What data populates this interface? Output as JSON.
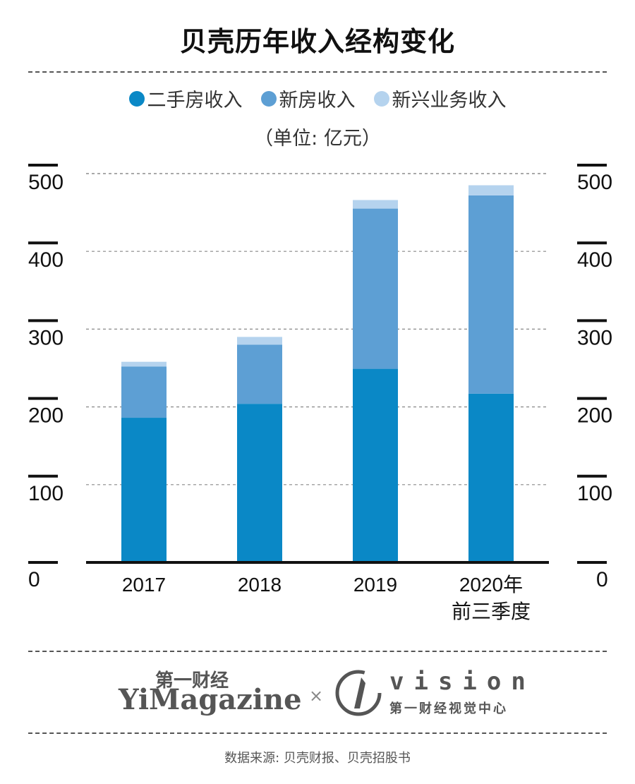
{
  "title": "贝壳历年收入经构变化",
  "unit": "（单位: 亿元）",
  "chart_data": {
    "type": "bar",
    "stacked": true,
    "categories": [
      [
        "2017"
      ],
      [
        "2018"
      ],
      [
        "2019"
      ],
      [
        "2020年",
        "前三季度"
      ]
    ],
    "series": [
      {
        "name": "二手房收入",
        "color": "#0a88c6",
        "values": [
          186,
          204,
          249,
          217
        ]
      },
      {
        "name": "新房收入",
        "color": "#5d9fd4",
        "values": [
          66,
          76,
          206,
          255
        ]
      },
      {
        "name": "新兴业务收入",
        "color": "#b5d3ee",
        "values": [
          6,
          10,
          11,
          13
        ]
      }
    ],
    "ylim": [
      0,
      500
    ],
    "yticks": [
      0,
      100,
      200,
      300,
      400,
      500
    ],
    "grid": true,
    "legend": "top"
  },
  "brand": {
    "cn": "第一财经",
    "en": "YiMagazine",
    "separator": "×",
    "vision_word": "vision",
    "vision_cn": "第一财经视觉中心"
  },
  "source": "数据来源: 贝壳财报、贝壳招股书"
}
